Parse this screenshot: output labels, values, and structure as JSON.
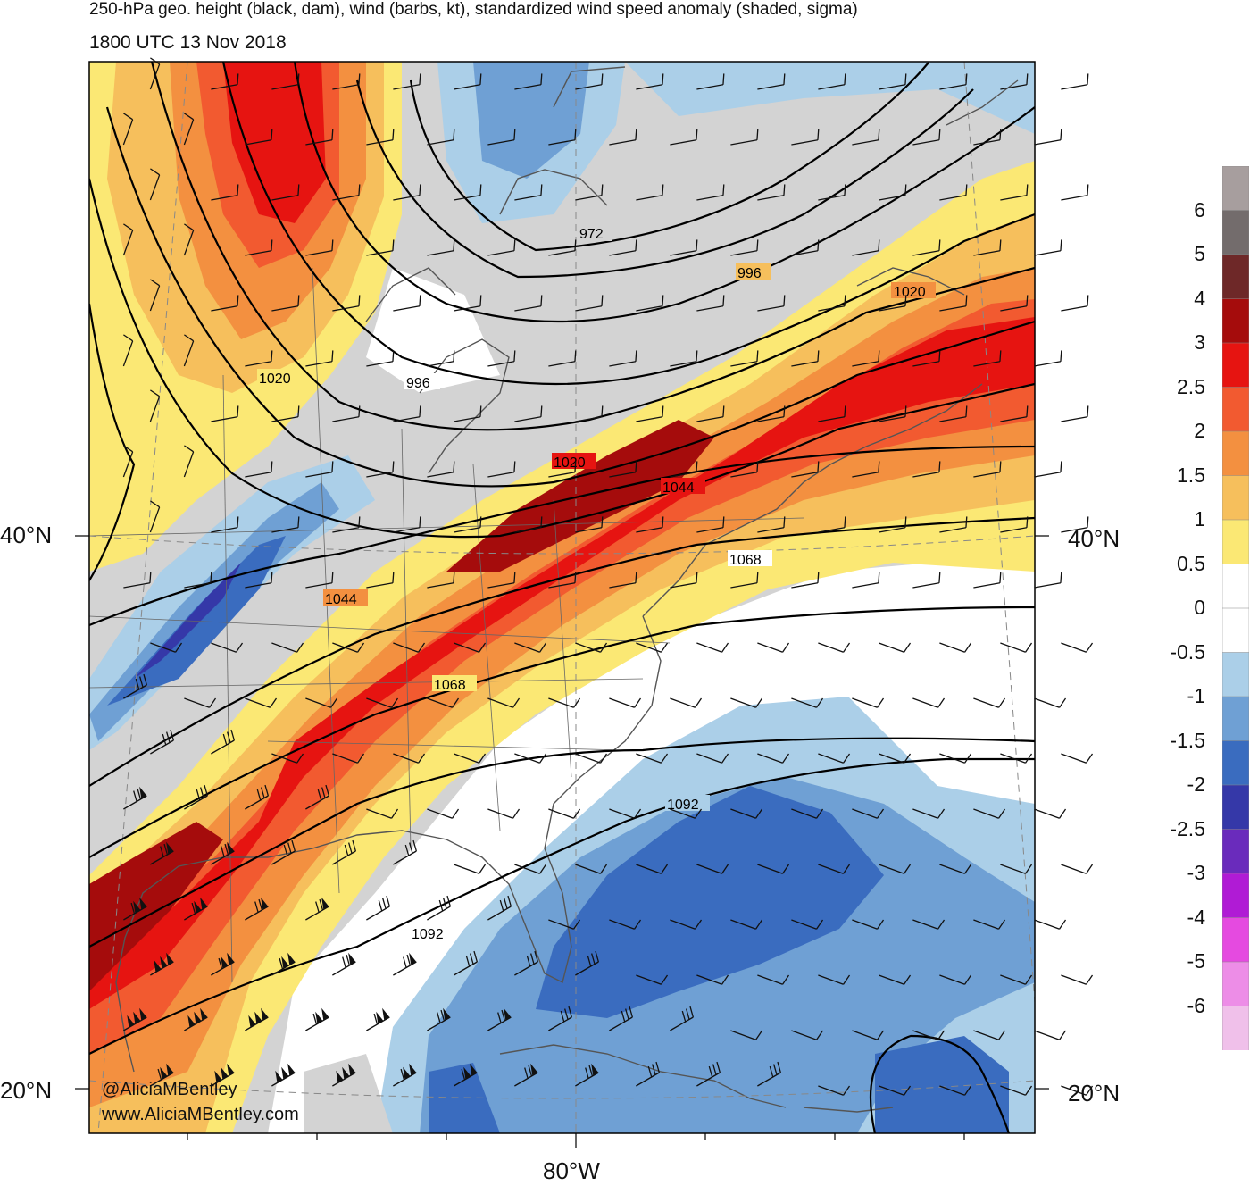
{
  "header": {
    "title": "250-hPa geo. height (black, dam), wind (barbs, kt), standardized wind speed anomaly (shaded, sigma)",
    "valid_time": "1800 UTC 13 Nov 2018"
  },
  "map": {
    "lat_labels": {
      "north_40_left": "40°N",
      "north_40_right": "40°N",
      "north_20_left": "20°N",
      "north_20_right": "20°N"
    },
    "lon_labels": {
      "west_80": "80°W"
    },
    "contour_labels": [
      "972",
      "996",
      "1020",
      "996",
      "1020",
      "1020",
      "1044",
      "1044",
      "1068",
      "1068",
      "1092",
      "1092"
    ],
    "credit": {
      "handle": "@AliciaMBentley",
      "site": "www.AliciaMBentley.com"
    }
  },
  "colorbar": {
    "tick_labels": [
      "6",
      "5",
      "4",
      "3",
      "2.5",
      "2",
      "1.5",
      "1",
      "0.5",
      "0",
      "-0.5",
      "-1",
      "-1.5",
      "-2",
      "-2.5",
      "-3",
      "-4",
      "-5",
      "-6"
    ],
    "colors": [
      "#a79e9e",
      "#736c6c",
      "#6e2828",
      "#a50c0c",
      "#e61411",
      "#f25a30",
      "#f39040",
      "#f6bf5c",
      "#fbe874",
      "#ffffff",
      "#ffffff",
      "#abcfe8",
      "#6fa0d4",
      "#3a6cbf",
      "#3538a8",
      "#6a2bbc",
      "#b01bd5",
      "#e54ae0",
      "#ed8de7",
      "#f0c0ea"
    ]
  },
  "colors": {
    "land_background": "#d3d3d3",
    "contour": "#000000",
    "coast": "#555555"
  }
}
